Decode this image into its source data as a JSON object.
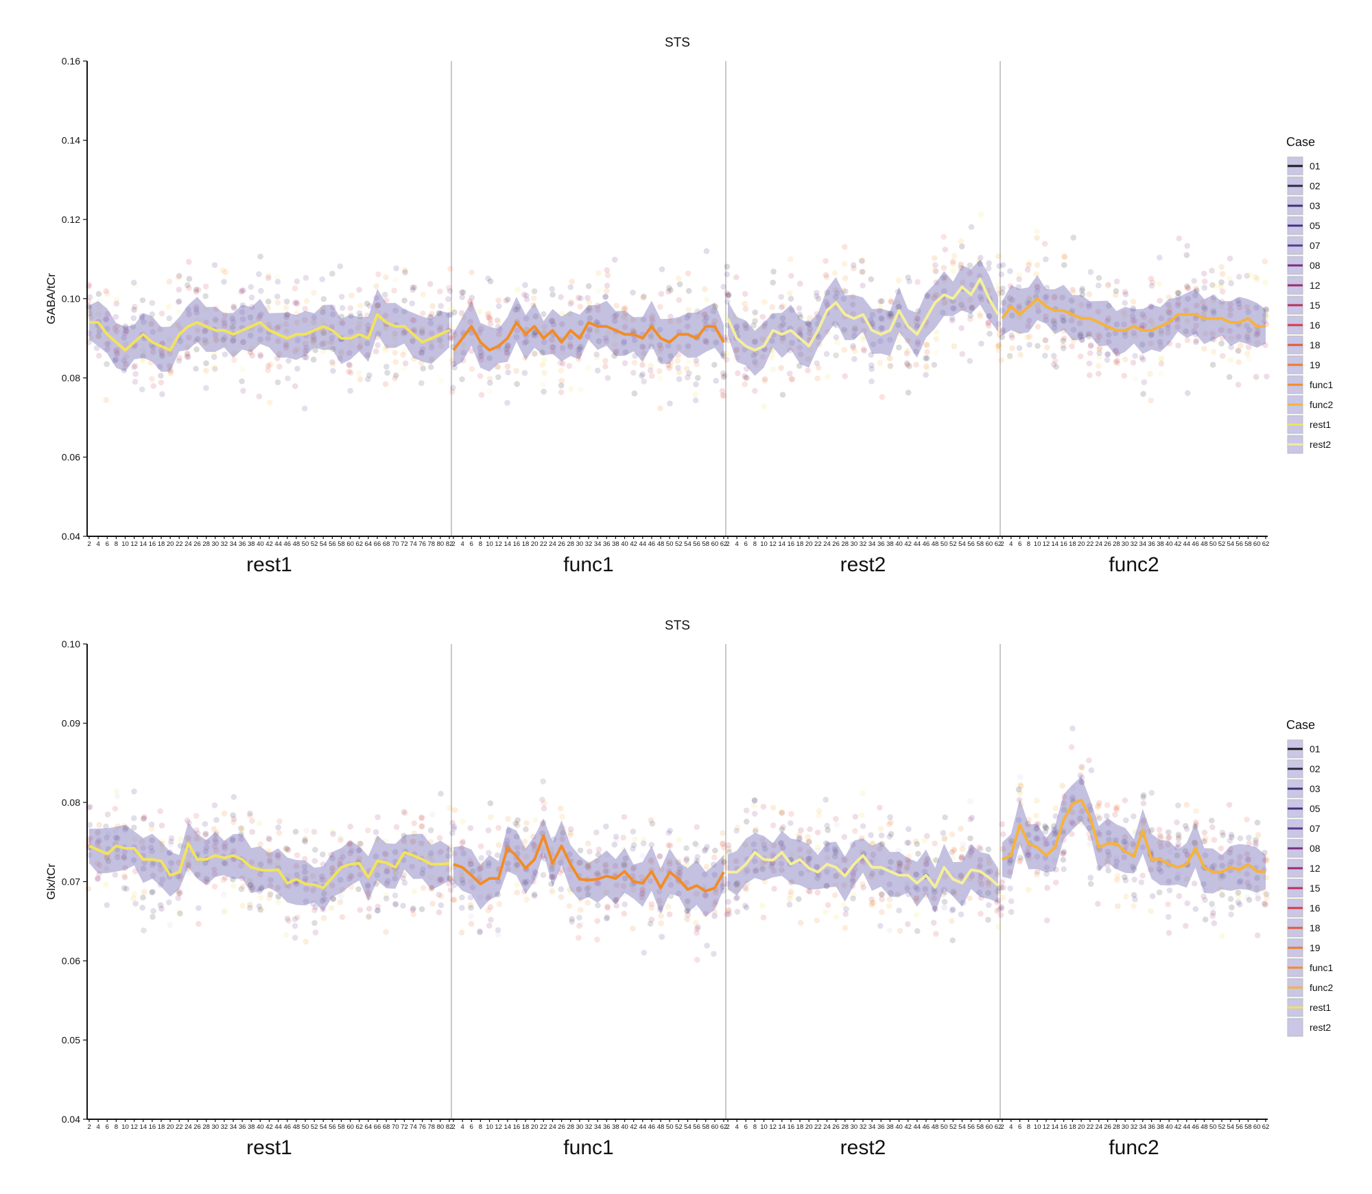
{
  "chart_data": [
    {
      "type": "scatter",
      "title": "STS",
      "ylabel": "GABA/tCr",
      "xlabel": "",
      "ylim": [
        0.04,
        0.16
      ],
      "yticks": [
        "0.04",
        "0.06",
        "0.08",
        "0.10",
        "0.12",
        "0.14",
        "0.16"
      ],
      "grid": false,
      "legend_placement": "right",
      "legend": {
        "title": "Case",
        "entries": [
          {
            "label": "01",
            "color": "#1a1a1a"
          },
          {
            "label": "02",
            "color": "#2b2a3e"
          },
          {
            "label": "03",
            "color": "#3d3470"
          },
          {
            "label": "05",
            "color": "#4a2f7e"
          },
          {
            "label": "07",
            "color": "#5b3a8c"
          },
          {
            "label": "08",
            "color": "#7a2f7c"
          },
          {
            "label": "12",
            "color": "#9a2c6a"
          },
          {
            "label": "15",
            "color": "#b8325a"
          },
          {
            "label": "16",
            "color": "#d23d45"
          },
          {
            "label": "18",
            "color": "#e05a38"
          },
          {
            "label": "19",
            "color": "#ec7a2c"
          },
          {
            "label": "func1",
            "color": "#f28c25"
          },
          {
            "label": "func2",
            "color": "#f6b33a"
          },
          {
            "label": "rest1",
            "color": "#f2e35a"
          },
          {
            "label": "rest2",
            "color": "#f4ef9a"
          }
        ]
      },
      "segments": [
        {
          "label": "rest1",
          "ticks": [
            "2",
            "4",
            "6",
            "8",
            "10",
            "12",
            "14",
            "16",
            "18",
            "20",
            "22",
            "24",
            "26",
            "28",
            "30",
            "32",
            "34",
            "36",
            "38",
            "40",
            "42",
            "44",
            "46",
            "48",
            "50",
            "52",
            "54",
            "56",
            "58",
            "60",
            "62",
            "64",
            "66",
            "68",
            "70",
            "72",
            "74",
            "76",
            "78",
            "80",
            "82"
          ],
          "line_color": "#f2e35a",
          "mean": [
            0.094,
            0.094,
            0.091,
            0.089,
            0.087,
            0.089,
            0.091,
            0.089,
            0.088,
            0.087,
            0.091,
            0.093,
            0.094,
            0.093,
            0.092,
            0.092,
            0.091,
            0.092,
            0.093,
            0.094,
            0.092,
            0.091,
            0.09,
            0.091,
            0.091,
            0.092,
            0.093,
            0.092,
            0.09,
            0.09,
            0.091,
            0.09,
            0.096,
            0.094,
            0.093,
            0.093,
            0.091,
            0.089,
            0.09,
            0.091,
            0.092
          ]
        },
        {
          "label": "func1",
          "ticks": [
            "2",
            "4",
            "6",
            "8",
            "10",
            "12",
            "14",
            "16",
            "18",
            "20",
            "22",
            "24",
            "26",
            "28",
            "30",
            "32",
            "34",
            "36",
            "38",
            "40",
            "42",
            "44",
            "46",
            "48",
            "50",
            "52",
            "54",
            "56",
            "58",
            "60",
            "62"
          ],
          "line_color": "#f28c25",
          "mean": [
            0.087,
            0.09,
            0.093,
            0.089,
            0.087,
            0.088,
            0.09,
            0.094,
            0.091,
            0.093,
            0.09,
            0.092,
            0.089,
            0.092,
            0.09,
            0.094,
            0.093,
            0.093,
            0.092,
            0.091,
            0.091,
            0.09,
            0.093,
            0.09,
            0.089,
            0.091,
            0.091,
            0.09,
            0.093,
            0.093,
            0.089
          ]
        },
        {
          "label": "rest2",
          "ticks": [
            "2",
            "4",
            "6",
            "8",
            "10",
            "12",
            "14",
            "16",
            "18",
            "20",
            "22",
            "24",
            "26",
            "28",
            "30",
            "32",
            "34",
            "36",
            "38",
            "40",
            "42",
            "44",
            "46",
            "48",
            "50",
            "52",
            "54",
            "56",
            "58",
            "60",
            "62"
          ],
          "line_color": "#f4ef9a",
          "mean": [
            0.095,
            0.09,
            0.088,
            0.087,
            0.088,
            0.092,
            0.091,
            0.092,
            0.09,
            0.088,
            0.092,
            0.097,
            0.099,
            0.096,
            0.095,
            0.096,
            0.092,
            0.091,
            0.092,
            0.097,
            0.093,
            0.091,
            0.095,
            0.099,
            0.101,
            0.1,
            0.103,
            0.101,
            0.105,
            0.1,
            0.096
          ]
        },
        {
          "label": "func2",
          "ticks": [
            "2",
            "4",
            "6",
            "8",
            "10",
            "12",
            "14",
            "16",
            "18",
            "20",
            "22",
            "24",
            "26",
            "28",
            "30",
            "32",
            "34",
            "36",
            "38",
            "40",
            "42",
            "44",
            "46",
            "48",
            "50",
            "52",
            "54",
            "56",
            "58",
            "60",
            "62"
          ],
          "line_color": "#f6b33a",
          "mean": [
            0.095,
            0.098,
            0.096,
            0.098,
            0.1,
            0.098,
            0.097,
            0.097,
            0.096,
            0.095,
            0.095,
            0.094,
            0.093,
            0.092,
            0.092,
            0.093,
            0.092,
            0.092,
            0.093,
            0.094,
            0.096,
            0.096,
            0.096,
            0.095,
            0.095,
            0.095,
            0.094,
            0.094,
            0.095,
            0.093,
            0.093
          ]
        }
      ]
    },
    {
      "type": "scatter",
      "title": "STS",
      "ylabel": "Glx/tCr",
      "xlabel": "",
      "ylim": [
        0.04,
        0.1
      ],
      "yticks": [
        "0.04",
        "0.05",
        "0.06",
        "0.07",
        "0.08",
        "0.09",
        "0.10"
      ],
      "grid": false,
      "legend_placement": "right",
      "legend": {
        "title": "Case",
        "entries": [
          {
            "label": "01",
            "color": "#1a1a1a"
          },
          {
            "label": "02",
            "color": "#2b2a3e"
          },
          {
            "label": "03",
            "color": "#3d3470"
          },
          {
            "label": "05",
            "color": "#4a2f7e"
          },
          {
            "label": "07",
            "color": "#5b3a8c"
          },
          {
            "label": "08",
            "color": "#7a2f7c"
          },
          {
            "label": "12",
            "color": "#9a2c6a"
          },
          {
            "label": "15",
            "color": "#b8325a"
          },
          {
            "label": "16",
            "color": "#d23d45"
          },
          {
            "label": "18",
            "color": "#e05a38"
          },
          {
            "label": "19",
            "color": "#ec7a2c"
          },
          {
            "label": "func1",
            "color": "#f28c25"
          },
          {
            "label": "func2",
            "color": "#f6b33a"
          },
          {
            "label": "rest1",
            "color": "#f2e35a"
          },
          {
            "label": "rest2",
            "color": "#c9c6e6"
          }
        ]
      },
      "segments": [
        {
          "label": "rest1",
          "ticks": [
            "2",
            "4",
            "6",
            "8",
            "10",
            "12",
            "14",
            "16",
            "18",
            "20",
            "22",
            "24",
            "26",
            "28",
            "30",
            "32",
            "34",
            "36",
            "38",
            "40",
            "42",
            "44",
            "46",
            "48",
            "50",
            "52",
            "54",
            "56",
            "58",
            "60",
            "62",
            "64",
            "66",
            "68",
            "70",
            "72",
            "74",
            "76",
            "78",
            "80",
            "82"
          ],
          "line_color": "#f2e35a",
          "mean": [
            0.0745,
            0.074,
            0.0735,
            0.0745,
            0.0742,
            0.0742,
            0.0728,
            0.0728,
            0.0726,
            0.0708,
            0.0712,
            0.0748,
            0.0728,
            0.0728,
            0.0733,
            0.073,
            0.0733,
            0.0728,
            0.0718,
            0.0715,
            0.0714,
            0.0715,
            0.0698,
            0.0703,
            0.0697,
            0.0696,
            0.0692,
            0.0705,
            0.0718,
            0.0722,
            0.0723,
            0.0705,
            0.0726,
            0.0724,
            0.0718,
            0.0737,
            0.0733,
            0.0728,
            0.0722,
            0.0722,
            0.0723
          ]
        },
        {
          "label": "func1",
          "ticks": [
            "2",
            "4",
            "6",
            "8",
            "10",
            "12",
            "14",
            "16",
            "18",
            "20",
            "22",
            "24",
            "26",
            "28",
            "30",
            "32",
            "34",
            "36",
            "38",
            "40",
            "42",
            "44",
            "46",
            "48",
            "50",
            "52",
            "54",
            "56",
            "58",
            "60",
            "62"
          ],
          "line_color": "#f28c25",
          "mean": [
            0.0722,
            0.0718,
            0.0708,
            0.0697,
            0.0704,
            0.0704,
            0.0743,
            0.0732,
            0.0717,
            0.0728,
            0.0758,
            0.0723,
            0.0745,
            0.0722,
            0.0703,
            0.0702,
            0.0703,
            0.0707,
            0.0704,
            0.0713,
            0.07,
            0.0698,
            0.0713,
            0.0692,
            0.0712,
            0.0703,
            0.069,
            0.0695,
            0.0688,
            0.0692,
            0.0712
          ]
        },
        {
          "label": "rest2",
          "ticks": [
            "2",
            "4",
            "6",
            "8",
            "10",
            "12",
            "14",
            "16",
            "18",
            "20",
            "22",
            "24",
            "26",
            "28",
            "30",
            "32",
            "34",
            "36",
            "38",
            "40",
            "42",
            "44",
            "46",
            "48",
            "50",
            "52",
            "54",
            "56",
            "58",
            "60",
            "62"
          ],
          "line_color": "#f4ef9a",
          "mean": [
            0.0712,
            0.0712,
            0.0722,
            0.0737,
            0.0728,
            0.0727,
            0.0737,
            0.0722,
            0.0728,
            0.0717,
            0.0712,
            0.0722,
            0.0718,
            0.0707,
            0.0722,
            0.0733,
            0.0718,
            0.0718,
            0.0713,
            0.0708,
            0.0708,
            0.0698,
            0.0708,
            0.0693,
            0.0718,
            0.0703,
            0.0698,
            0.0715,
            0.0713,
            0.0705,
            0.0695
          ]
        },
        {
          "label": "func2",
          "ticks": [
            "2",
            "4",
            "6",
            "8",
            "10",
            "12",
            "14",
            "16",
            "18",
            "20",
            "22",
            "24",
            "26",
            "28",
            "30",
            "32",
            "34",
            "36",
            "38",
            "40",
            "42",
            "44",
            "46",
            "48",
            "50",
            "52",
            "54",
            "56",
            "58",
            "60",
            "62"
          ],
          "line_color": "#f6b33a",
          "mean": [
            0.0728,
            0.0733,
            0.0772,
            0.0748,
            0.0743,
            0.0733,
            0.0743,
            0.0778,
            0.0798,
            0.0803,
            0.0782,
            0.0743,
            0.0748,
            0.0748,
            0.0738,
            0.0732,
            0.0765,
            0.0728,
            0.0728,
            0.0722,
            0.0718,
            0.0722,
            0.0742,
            0.0718,
            0.0712,
            0.0712,
            0.0718,
            0.0715,
            0.0722,
            0.0713,
            0.0712
          ]
        }
      ]
    }
  ]
}
